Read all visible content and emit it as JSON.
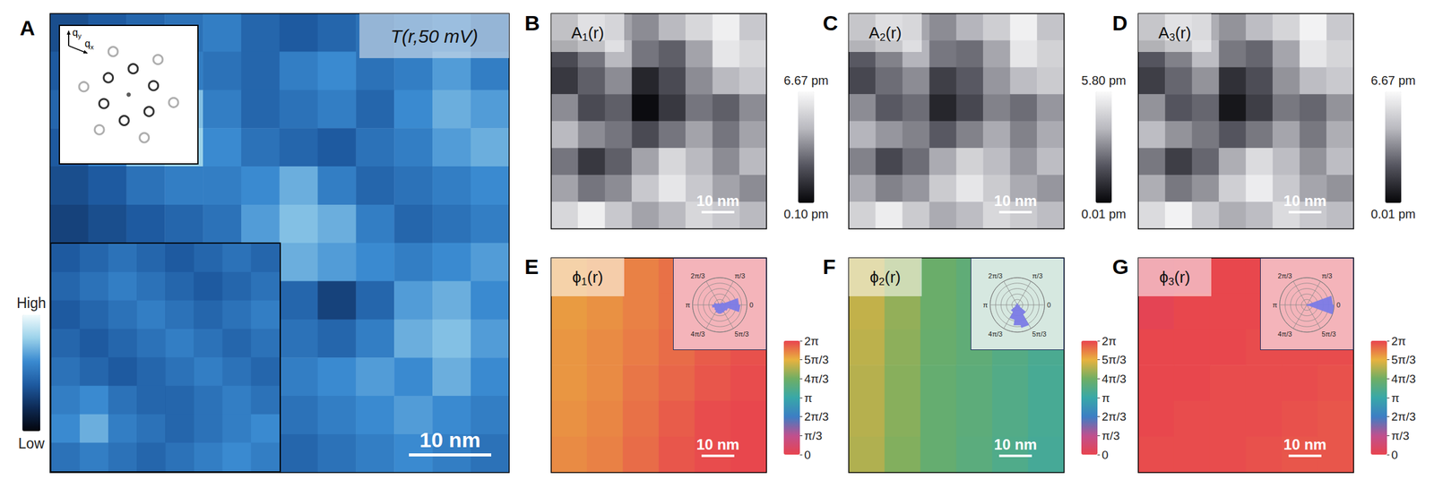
{
  "chart_data": [
    {
      "type": "heatmap",
      "panel": "A",
      "title": "T(r,50 mV)",
      "scale_bar": "10 nm",
      "tick_labels": false,
      "cells": [
        [
          0.35,
          0.4,
          0.45,
          0.5,
          0.55,
          0.45,
          0.4,
          0.45,
          0.5,
          0.55,
          0.6,
          0.5
        ],
        [
          0.4,
          0.45,
          0.5,
          0.55,
          0.5,
          0.45,
          0.55,
          0.6,
          0.5,
          0.55,
          0.65,
          0.55
        ],
        [
          0.45,
          0.6,
          0.7,
          0.75,
          0.55,
          0.45,
          0.5,
          0.55,
          0.45,
          0.6,
          0.7,
          0.65
        ],
        [
          0.4,
          0.55,
          0.75,
          0.8,
          0.6,
          0.5,
          0.45,
          0.4,
          0.5,
          0.55,
          0.65,
          0.7
        ],
        [
          0.35,
          0.4,
          0.5,
          0.55,
          0.55,
          0.6,
          0.7,
          0.55,
          0.45,
          0.5,
          0.55,
          0.6
        ],
        [
          0.3,
          0.35,
          0.4,
          0.45,
          0.5,
          0.65,
          0.75,
          0.7,
          0.55,
          0.45,
          0.5,
          0.55
        ],
        [
          0.3,
          0.3,
          0.35,
          0.4,
          0.45,
          0.55,
          0.7,
          0.65,
          0.6,
          0.55,
          0.6,
          0.65
        ],
        [
          0.35,
          0.35,
          0.4,
          0.4,
          0.45,
          0.5,
          0.45,
          0.3,
          0.45,
          0.65,
          0.7,
          0.6
        ],
        [
          0.4,
          0.4,
          0.45,
          0.45,
          0.4,
          0.45,
          0.5,
          0.45,
          0.55,
          0.7,
          0.75,
          0.65
        ],
        [
          0.4,
          0.45,
          0.45,
          0.4,
          0.45,
          0.5,
          0.55,
          0.6,
          0.65,
          0.6,
          0.7,
          0.6
        ],
        [
          0.45,
          0.45,
          0.4,
          0.45,
          0.5,
          0.55,
          0.5,
          0.55,
          0.6,
          0.65,
          0.6,
          0.55
        ],
        [
          0.45,
          0.5,
          0.45,
          0.5,
          0.55,
          0.5,
          0.45,
          0.5,
          0.55,
          0.6,
          0.55,
          0.5
        ]
      ],
      "inset_cells": [
        [
          0.4,
          0.45,
          0.5,
          0.45,
          0.4,
          0.45,
          0.5,
          0.45
        ],
        [
          0.45,
          0.5,
          0.55,
          0.5,
          0.45,
          0.4,
          0.45,
          0.5
        ],
        [
          0.4,
          0.45,
          0.5,
          0.55,
          0.5,
          0.45,
          0.5,
          0.55
        ],
        [
          0.45,
          0.4,
          0.45,
          0.5,
          0.55,
          0.5,
          0.45,
          0.5
        ],
        [
          0.5,
          0.45,
          0.4,
          0.45,
          0.5,
          0.55,
          0.5,
          0.45
        ],
        [
          0.55,
          0.6,
          0.5,
          0.45,
          0.45,
          0.5,
          0.55,
          0.5
        ],
        [
          0.6,
          0.7,
          0.55,
          0.5,
          0.45,
          0.5,
          0.55,
          0.6
        ],
        [
          0.5,
          0.55,
          0.5,
          0.45,
          0.5,
          0.55,
          0.6,
          0.55
        ]
      ],
      "colorbar": {
        "range": [
          0,
          1
        ],
        "ticks": [
          {
            "value": 1,
            "label": "High"
          },
          {
            "value": 0,
            "label": "Low"
          }
        ]
      }
    },
    {
      "type": "scatter",
      "panel": "A",
      "xlim": [
        -2.6,
        2.6
      ],
      "ylim": [
        -2.6,
        2.6
      ],
      "tick_labels": false,
      "axis_labels": [
        {
          "main": "q",
          "sub": "x"
        },
        {
          "main": "q",
          "sub": "y"
        }
      ],
      "series": [
        {
          "color": "#000000",
          "marker": "ring",
          "x": [
            0.94,
            0.17,
            -0.77,
            -0.94,
            -0.17,
            0.77
          ],
          "y": [
            0.34,
            0.98,
            0.64,
            -0.34,
            -0.98,
            -0.64
          ]
        },
        {
          "color": "#9a9a9a",
          "marker": "ring",
          "x": [
            1.11,
            -0.59,
            -1.7,
            -1.11,
            0.59,
            1.7
          ],
          "y": [
            1.33,
            1.63,
            0.3,
            -1.33,
            -1.63,
            -0.3
          ]
        },
        {
          "color": "#333333",
          "marker": "dot",
          "x": [
            0
          ],
          "y": [
            0
          ]
        }
      ]
    },
    {
      "type": "heatmap",
      "panel": "B",
      "title": {
        "main": "A",
        "sub": "1",
        "tail": "(r)"
      },
      "scale_bar": "10 nm",
      "tick_labels": false,
      "cells": [
        [
          3.0,
          4.5,
          4.0,
          3.5,
          4.5,
          5.5,
          6.3,
          5.0
        ],
        [
          2.0,
          3.0,
          4.5,
          3.0,
          2.5,
          4.0,
          6.0,
          5.5
        ],
        [
          1.5,
          2.5,
          3.5,
          1.0,
          2.0,
          3.5,
          4.5,
          5.0
        ],
        [
          3.5,
          2.0,
          2.5,
          0.3,
          1.5,
          3.0,
          2.5,
          3.5
        ],
        [
          4.5,
          3.5,
          3.0,
          2.0,
          3.0,
          4.0,
          3.0,
          4.0
        ],
        [
          3.0,
          1.5,
          2.5,
          4.0,
          5.5,
          4.5,
          3.5,
          4.5
        ],
        [
          4.0,
          3.0,
          3.5,
          5.0,
          6.0,
          5.0,
          4.0,
          3.5
        ],
        [
          5.5,
          6.3,
          5.0,
          4.0,
          4.5,
          5.5,
          5.0,
          4.5
        ]
      ],
      "colorbar": {
        "range": [
          0.1,
          6.67
        ],
        "ticks": [
          {
            "value": 6.67,
            "label": "6.67 pm"
          },
          {
            "value": 0.1,
            "label": "0.10 pm"
          }
        ]
      }
    },
    {
      "type": "heatmap",
      "panel": "C",
      "title": {
        "main": "A",
        "sub": "2",
        "tail": "(r)"
      },
      "scale_bar": "10 nm",
      "tick_labels": false,
      "cells": [
        [
          2.8,
          3.8,
          3.5,
          3.0,
          3.8,
          4.5,
          5.5,
          4.2
        ],
        [
          2.0,
          2.8,
          3.8,
          2.6,
          2.4,
          3.5,
          5.2,
          4.6
        ],
        [
          1.6,
          2.4,
          3.0,
          1.4,
          2.0,
          3.2,
          4.0,
          4.4
        ],
        [
          3.0,
          2.0,
          2.4,
          0.8,
          1.6,
          2.8,
          2.4,
          3.2
        ],
        [
          3.8,
          3.2,
          2.8,
          2.0,
          2.8,
          3.6,
          2.8,
          3.6
        ],
        [
          2.8,
          1.6,
          2.4,
          3.6,
          4.6,
          4.0,
          3.2,
          4.0
        ],
        [
          3.6,
          2.8,
          3.2,
          4.4,
          5.2,
          4.4,
          3.6,
          3.2
        ],
        [
          4.6,
          5.4,
          4.4,
          3.6,
          4.0,
          4.8,
          4.4,
          4.0
        ]
      ],
      "colorbar": {
        "range": [
          0.01,
          5.8
        ],
        "ticks": [
          {
            "value": 5.8,
            "label": "5.80 pm"
          },
          {
            "value": 0.01,
            "label": "0.01 pm"
          }
        ]
      }
    },
    {
      "type": "heatmap",
      "panel": "D",
      "title": {
        "main": "A",
        "sub": "3",
        "tail": "(r)"
      },
      "scale_bar": "10 nm",
      "tick_labels": false,
      "cells": [
        [
          3.2,
          4.6,
          4.2,
          3.6,
          4.6,
          5.4,
          6.4,
          5.0
        ],
        [
          2.2,
          3.2,
          4.6,
          3.0,
          2.6,
          4.0,
          6.0,
          5.4
        ],
        [
          1.6,
          2.6,
          3.6,
          1.2,
          2.0,
          3.6,
          4.6,
          5.0
        ],
        [
          3.6,
          2.2,
          2.6,
          0.5,
          1.6,
          3.0,
          2.6,
          3.6
        ],
        [
          4.6,
          3.6,
          3.0,
          2.2,
          3.0,
          4.0,
          3.0,
          4.2
        ],
        [
          3.0,
          1.6,
          2.6,
          4.2,
          5.6,
          4.6,
          3.6,
          4.6
        ],
        [
          4.2,
          3.0,
          3.6,
          5.2,
          6.2,
          5.0,
          4.0,
          3.6
        ],
        [
          5.6,
          6.4,
          5.0,
          4.2,
          4.6,
          5.6,
          5.0,
          4.6
        ]
      ],
      "colorbar": {
        "range": [
          0.01,
          6.67
        ],
        "ticks": [
          {
            "value": 6.67,
            "label": "6.67 pm"
          },
          {
            "value": 0.01,
            "label": "0.01 pm"
          }
        ]
      }
    },
    {
      "type": "heatmap",
      "panel": "E",
      "title": {
        "main": "ϕ",
        "sub": "1",
        "tail": "(r)"
      },
      "scale_bar": "10 nm",
      "tick_labels": false,
      "cells": [
        [
          5.45,
          5.55,
          5.7,
          5.85,
          6.0,
          6.1
        ],
        [
          5.45,
          5.55,
          5.7,
          5.85,
          6.0,
          6.1
        ],
        [
          5.5,
          5.6,
          5.75,
          5.9,
          6.05,
          6.15
        ],
        [
          5.5,
          5.6,
          5.8,
          5.95,
          6.1,
          6.2
        ],
        [
          5.55,
          5.65,
          5.85,
          6.05,
          6.2,
          6.25
        ],
        [
          5.6,
          5.7,
          5.9,
          6.1,
          6.2,
          6.25
        ]
      ],
      "colorbar": {
        "range": [
          0,
          6.2832
        ],
        "ticks": [
          {
            "value": 0,
            "label": "0"
          },
          {
            "value": 1.0472,
            "label": "π/3"
          },
          {
            "value": 2.0944,
            "label": "2π/3"
          },
          {
            "value": 3.1416,
            "label": "π"
          },
          {
            "value": 4.1888,
            "label": "4π/3"
          },
          {
            "value": 5.236,
            "label": "5π/3"
          },
          {
            "value": 6.2832,
            "label": "2π"
          }
        ]
      },
      "inset": {
        "type": "polar_histogram",
        "color": "#7b7be6",
        "rlim": [
          0,
          100
        ],
        "angle_lim": [
          0,
          6.2832
        ],
        "angle_ticks": [
          {
            "value": 0,
            "label": "0"
          },
          {
            "value": 1.0472,
            "label": "π/3"
          },
          {
            "value": 2.0944,
            "label": "2π/3"
          },
          {
            "value": 3.1416,
            "label": "π"
          },
          {
            "value": 4.1888,
            "label": "4π/3"
          },
          {
            "value": 5.236,
            "label": "5π/3"
          }
        ],
        "bins": [
          0,
          0.3491,
          0.6981,
          1.0472,
          1.3963,
          1.7453,
          2.0944,
          2.4435,
          2.7925,
          3.1416,
          3.4907,
          3.8397,
          4.1888,
          4.5379,
          4.8869,
          5.236,
          5.5851,
          5.9341,
          6.2832
        ],
        "counts": [
          70,
          15,
          8,
          4,
          3,
          4,
          7,
          10,
          20,
          28,
          22,
          25,
          30,
          32,
          30,
          28,
          32,
          75
        ]
      }
    },
    {
      "type": "heatmap",
      "panel": "F",
      "title": {
        "main": "ϕ",
        "sub": "2",
        "tail": "(r)"
      },
      "scale_bar": "10 nm",
      "tick_labels": false,
      "cells": [
        [
          4.9,
          4.5,
          4.1,
          3.9,
          3.7,
          3.5
        ],
        [
          4.9,
          4.5,
          4.1,
          3.9,
          3.7,
          3.5
        ],
        [
          4.85,
          4.45,
          4.05,
          3.9,
          3.7,
          3.5
        ],
        [
          4.8,
          4.4,
          4.0,
          3.85,
          3.65,
          3.45
        ],
        [
          4.8,
          4.4,
          4.0,
          3.85,
          3.65,
          3.45
        ],
        [
          4.75,
          4.35,
          4.0,
          3.8,
          3.6,
          3.4
        ]
      ],
      "colorbar": {
        "range": [
          0,
          6.2832
        ],
        "ticks": [
          {
            "value": 0,
            "label": "0"
          },
          {
            "value": 1.0472,
            "label": "π/3"
          },
          {
            "value": 2.0944,
            "label": "2π/3"
          },
          {
            "value": 3.1416,
            "label": "π"
          },
          {
            "value": 4.1888,
            "label": "4π/3"
          },
          {
            "value": 5.236,
            "label": "5π/3"
          },
          {
            "value": 6.2832,
            "label": "2π"
          }
        ]
      },
      "inset": {
        "type": "polar_histogram",
        "color": "#7b7be6",
        "rlim": [
          0,
          100
        ],
        "angle_lim": [
          0,
          6.2832
        ],
        "angle_ticks": [
          {
            "value": 0,
            "label": "0"
          },
          {
            "value": 1.0472,
            "label": "π/3"
          },
          {
            "value": 2.0944,
            "label": "2π/3"
          },
          {
            "value": 3.1416,
            "label": "π"
          },
          {
            "value": 4.1888,
            "label": "4π/3"
          },
          {
            "value": 5.236,
            "label": "5π/3"
          }
        ],
        "bins": [
          0,
          0.3491,
          0.6981,
          1.0472,
          1.3963,
          1.7453,
          2.0944,
          2.4435,
          2.7925,
          3.1416,
          3.4907,
          3.8397,
          4.1888,
          4.5379,
          4.8869,
          5.236,
          5.5851,
          5.9341,
          6.2832
        ],
        "counts": [
          4,
          3,
          2,
          2,
          3,
          6,
          3,
          2,
          3,
          5,
          8,
          30,
          55,
          75,
          85,
          40,
          10,
          4
        ]
      }
    },
    {
      "type": "heatmap",
      "panel": "G",
      "title": {
        "main": "ϕ",
        "sub": "3",
        "tail": "(r)"
      },
      "scale_bar": "10 nm",
      "tick_labels": false,
      "cells": [
        [
          0.2,
          0.15,
          6.25,
          6.25,
          6.2,
          6.2
        ],
        [
          0.1,
          6.25,
          6.25,
          6.25,
          6.2,
          6.2
        ],
        [
          6.25,
          6.25,
          6.25,
          6.2,
          6.2,
          6.2
        ],
        [
          6.25,
          6.25,
          6.2,
          6.2,
          6.2,
          6.15
        ],
        [
          6.25,
          6.2,
          6.2,
          6.2,
          6.15,
          6.1
        ],
        [
          6.2,
          6.2,
          6.2,
          6.15,
          6.1,
          6.1
        ]
      ],
      "colorbar": {
        "range": [
          0,
          6.2832
        ],
        "ticks": [
          {
            "value": 0,
            "label": "0"
          },
          {
            "value": 1.0472,
            "label": "π/3"
          },
          {
            "value": 2.0944,
            "label": "2π/3"
          },
          {
            "value": 3.1416,
            "label": "π"
          },
          {
            "value": 4.1888,
            "label": "4π/3"
          },
          {
            "value": 5.236,
            "label": "5π/3"
          },
          {
            "value": 6.2832,
            "label": "2π"
          }
        ]
      },
      "inset": {
        "type": "polar_histogram",
        "color": "#7b7be6",
        "rlim": [
          0,
          100
        ],
        "angle_lim": [
          0,
          6.2832
        ],
        "angle_ticks": [
          {
            "value": 0,
            "label": "0"
          },
          {
            "value": 1.0472,
            "label": "π/3"
          },
          {
            "value": 2.0944,
            "label": "2π/3"
          },
          {
            "value": 3.1416,
            "label": "π"
          },
          {
            "value": 4.1888,
            "label": "4π/3"
          },
          {
            "value": 5.236,
            "label": "5π/3"
          }
        ],
        "bins": [
          0,
          0.3491,
          0.6981,
          1.0472,
          1.3963,
          1.7453,
          2.0944,
          2.4435,
          2.7925,
          3.1416,
          3.4907,
          3.8397,
          4.1888,
          4.5379,
          4.8869,
          5.236,
          5.5851,
          5.9341,
          6.2832
        ],
        "counts": [
          95,
          5,
          2,
          1,
          1,
          1,
          1,
          1,
          1,
          1,
          1,
          1,
          1,
          1,
          1,
          2,
          6,
          100
        ]
      }
    }
  ]
}
